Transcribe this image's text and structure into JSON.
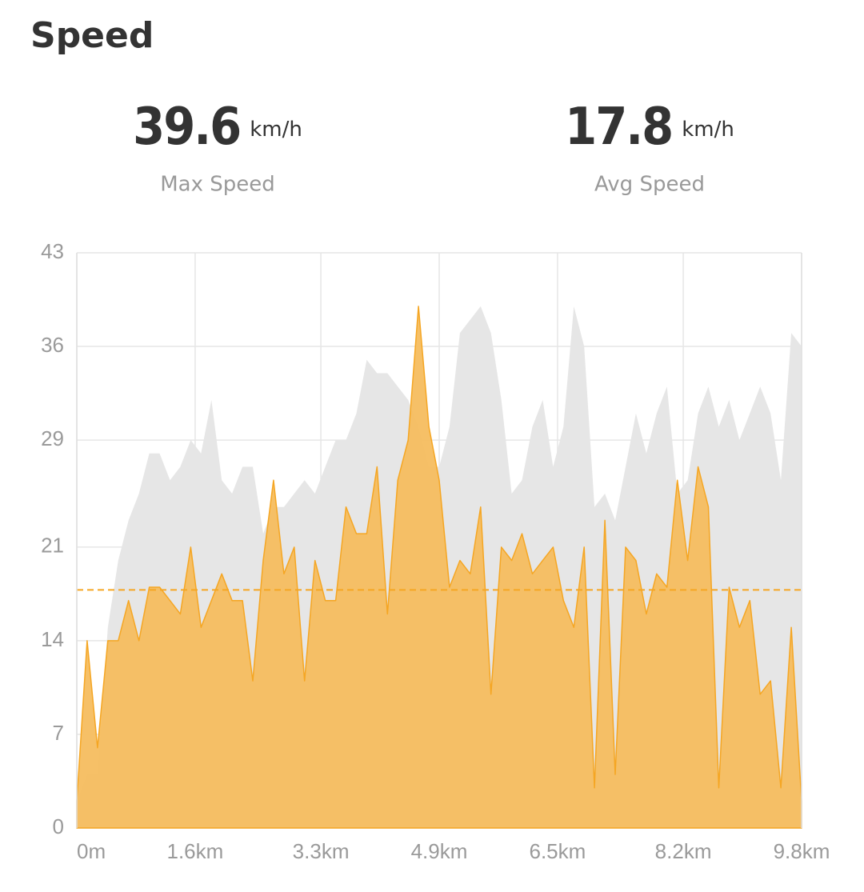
{
  "chart_data": {
    "type": "area",
    "title": "Speed",
    "stats": [
      {
        "value": 39.6,
        "unit": "km/h",
        "label": "Max Speed"
      },
      {
        "value": 17.8,
        "unit": "km/h",
        "label": "Avg Speed"
      }
    ],
    "average_color": "#f5a623",
    "x": [
      0,
      0.14,
      0.28,
      0.42,
      0.56,
      0.7,
      0.84,
      0.98,
      1.12,
      1.26,
      1.4,
      1.54,
      1.68,
      1.82,
      1.96,
      2.1,
      2.24,
      2.38,
      2.52,
      2.66,
      2.8,
      2.94,
      3.08,
      3.22,
      3.36,
      3.5,
      3.64,
      3.78,
      3.92,
      4.06,
      4.2,
      4.34,
      4.48,
      4.62,
      4.76,
      4.9,
      5.04,
      5.18,
      5.32,
      5.46,
      5.6,
      5.74,
      5.88,
      6.02,
      6.16,
      6.3,
      6.44,
      6.58,
      6.72,
      6.86,
      7,
      7.14,
      7.28,
      7.42,
      7.56,
      7.7,
      7.84,
      7.98,
      8.12,
      8.26,
      8.4,
      8.54,
      8.68,
      8.82,
      8.96,
      9.1,
      9.24,
      9.38,
      9.52,
      9.66,
      9.8
    ],
    "series": [
      {
        "color": "#e6e6e6",
        "values": [
          2,
          4,
          4,
          15,
          20,
          23,
          25,
          28,
          28,
          26,
          27,
          29,
          28,
          32,
          26,
          25,
          27,
          27,
          22,
          24,
          24,
          25,
          26,
          25,
          27,
          29,
          29,
          31,
          35,
          34,
          34,
          33,
          32,
          30,
          27,
          27,
          30,
          37,
          38,
          39,
          37,
          32,
          25,
          26,
          30,
          32,
          27,
          30,
          39,
          36,
          24,
          25,
          23,
          27,
          31,
          28,
          31,
          33,
          25,
          26,
          31,
          33,
          30,
          32,
          29,
          31,
          33,
          31,
          26,
          37,
          36
        ]
      },
      {
        "color": "#f5bd5f",
        "values": [
          2,
          14,
          6,
          14,
          14,
          17,
          14,
          18,
          18,
          17,
          16,
          21,
          15,
          17,
          19,
          17,
          17,
          11,
          20,
          26,
          19,
          21,
          11,
          20,
          17,
          17,
          24,
          22,
          22,
          27,
          16,
          26,
          29,
          39,
          30,
          26,
          18,
          20,
          19,
          24,
          10,
          21,
          20,
          22,
          19,
          20,
          21,
          17,
          15,
          21,
          3,
          23,
          4,
          21,
          20,
          16,
          19,
          18,
          26,
          20,
          27,
          24,
          3,
          18,
          15,
          17,
          10,
          11,
          3,
          15,
          2
        ]
      }
    ],
    "xlim": [
      0,
      9.8
    ],
    "xticks": [
      {
        "value": 0,
        "label": "0m"
      },
      {
        "value": 1.6,
        "label": "1.6km"
      },
      {
        "value": 3.3,
        "label": "3.3km"
      },
      {
        "value": 4.9,
        "label": "4.9km"
      },
      {
        "value": 6.5,
        "label": "6.5km"
      },
      {
        "value": 8.2,
        "label": "8.2km"
      },
      {
        "value": 9.8,
        "label": "9.8km"
      }
    ],
    "ylim": [
      0,
      43
    ],
    "yticks": [
      0,
      7,
      14,
      21,
      29,
      36,
      43
    ],
    "grid": true
  }
}
